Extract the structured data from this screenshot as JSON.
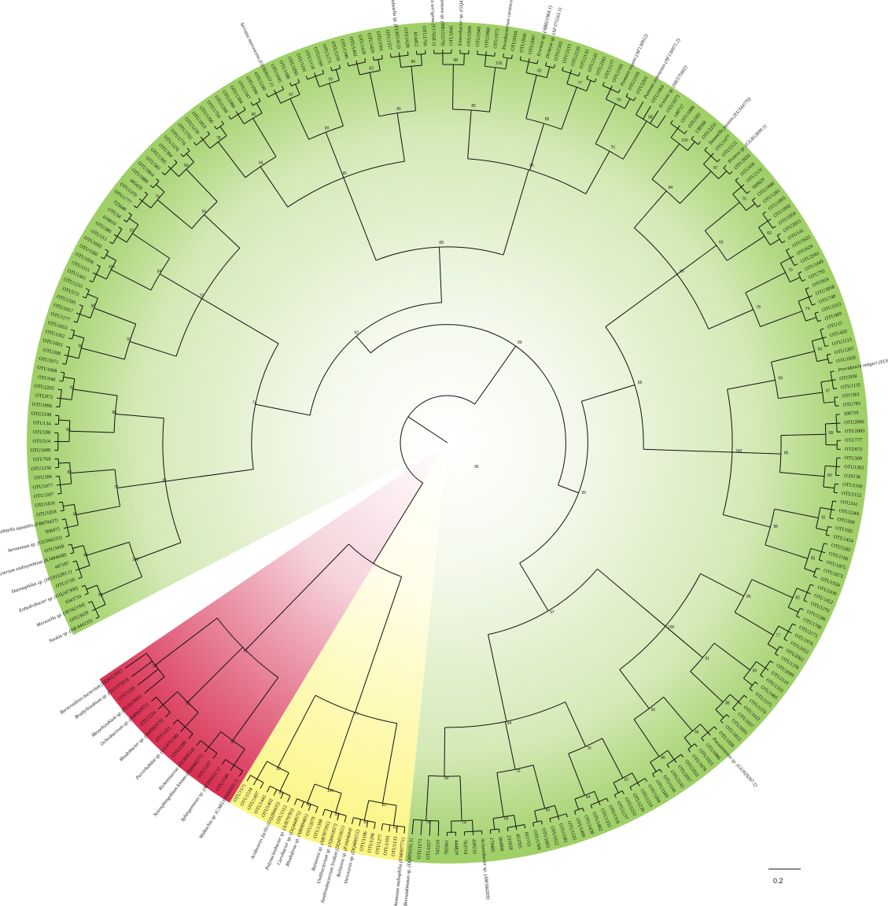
{
  "clades": {
    "green_color": "#8cc34f",
    "yellow_color": "#fbf57a",
    "red_color": "#d7264a"
  },
  "scale_bar": {
    "label": "0.2"
  },
  "root_bootstrap": "95",
  "inner_bootstraps": [
    "95",
    "98",
    "100",
    "85",
    "82",
    "77",
    "85",
    "93",
    "88",
    "91",
    "96",
    "88",
    "92",
    "100",
    "87",
    "84",
    "76",
    "60",
    "65",
    "70",
    "74",
    "78",
    "90",
    "94",
    "97",
    "99",
    "89",
    "83",
    "86",
    "81"
  ],
  "green_labels": [
    "Neokia sp. (NR 044135)",
    "OTU3620",
    "Moraxella sp. (AY162144)",
    "1043734",
    "Enhydrobacter sp. (GQ247300)",
    "OTU1739",
    "Haemophilus sp. (HG915281.1)",
    "447187",
    "Bacterium endosymbiont (KJ494648)",
    "OTU3458",
    "Aeromonas sp. (GU566333)",
    "908475",
    "Rahnella aquatilis (FR870437)",
    "OTU1858",
    "OTU1830",
    "OTU1207",
    "OTU1077",
    "OTU384",
    "OTU1236",
    "OTU768",
    "OTU1608",
    "OTU514",
    "OTU598",
    "OTU134",
    "OTU2198",
    "OTU1896",
    "OTU972",
    "OTU2205",
    "OTU940",
    "OTU1068",
    "OTU2071",
    "OTU208",
    "OTU1603",
    "OTU1162",
    "OTU1653",
    "OTU1177",
    "OTU1057",
    "OTU1595",
    "OTU572",
    "OTU1233",
    "OTU1441",
    "OTU1111",
    "OTU1836",
    "OTU1566",
    "OTU1602",
    "OTU153",
    "OTU380",
    "618010",
    "OTU34",
    "725648",
    "OTU1777",
    "OTU1370",
    "445420",
    "OTU1889",
    "OTU1864",
    "OTU583",
    "OTU1395",
    "OTU384",
    "OTU1376",
    "OTU1776",
    "OTU1702",
    "OTU1239",
    "OTU1853",
    "OTU1396",
    "OTU1759",
    "OTU1288",
    "OTU2080",
    "OTU1384",
    "OTU1347",
    "OTU1990",
    "OTU1240",
    "Serratia marcescens (GU826157.1)",
    "OTU1045",
    "OTU1188",
    "OTU1093",
    "OTU1101",
    "OTU1118",
    "OTU1160",
    "OTU1271",
    "OTU1310",
    "OTU1346",
    "OTU1402",
    "OTU1420",
    "OTU1429",
    "OTU1501",
    "OTU1557",
    "Klebsiella sp. (EU851413)",
    "OTU1628",
    "814452",
    "OTU1760",
    "Raoultella terrigena (Y17658.1)",
    "Pantoea sp. (NR153279)",
    "OTU1845",
    "Enterobacter sp. (GQ478258)",
    "OTU1909",
    "OTU1949",
    "OTU1960",
    "OTU1972",
    "Pectobacterium carotovorum (NR118528.1)",
    "OTU2034",
    "OTU2041",
    "OTU2067",
    "Erwinia sp. (AB021964.1)",
    "Dickeya sp. (AF373163.1)",
    "OTU2102",
    "OTU2115",
    "OTU2120",
    "OTU2133",
    "OTU2145",
    "OTU2161",
    "OTU2177",
    "OTU2181",
    "Pantoea vagans (AF130912)",
    "OTU2195",
    "OTU2201",
    "Pantoea cedenensis (AF130971.2)",
    "OTU1864",
    "Erwinia sp. (HE575602)",
    "OTU1073",
    "140717",
    "OTU1886",
    "OTU583",
    "138568",
    "OTU2251",
    "Tatumella ptyseos (EU344770)",
    "OTU1477",
    "OTU2121",
    "Proteus sp. (GU812899.1)",
    "OTU2024",
    "OTU418",
    "OTU2131",
    "560629",
    "OTU1846",
    "OTU1281",
    "OTU1893",
    "OTU1892",
    "OTU1956",
    "OTU2015",
    "OTU141",
    "OTU1622",
    "OTU624",
    "OTU2041",
    "OTU1449",
    "OTU792",
    "OTU924",
    "OTU1858",
    "OTU749",
    "OTU1553",
    "OTU469",
    "OTU15",
    "OTU420",
    "OTU2113",
    "OTU1267",
    "OTU1826",
    "Providencia rettgeri (EU660351.1)",
    "OTU930",
    "OTU1135",
    "OTU361",
    "OTU783",
    "300729",
    "OTU2082",
    "OTU2083",
    "OTU777",
    "OTU672",
    "OTU309",
    "OTU1302",
    "1129136",
    "OTU2166",
    "OTU2152",
    "OTU241",
    "OTU2344",
    "OTU506",
    "OTU585",
    "OTU1454",
    "OTU1282",
    "OTU1106",
    "OTU1875",
    "OTU1873",
    "OTU1924",
    "OTU2439",
    "OTU1452",
    "OTU1270",
    "OTU1596",
    "OTU1786",
    "OTU2173",
    "OTU1976",
    "OTU2052",
    "OTU2065",
    "OTU1376",
    "OTU2089",
    "OTU2116",
    "OTU1319",
    "OTU1495",
    "OTU1575",
    "OTU1579",
    "OTU1622",
    "OTU1657",
    "OTU1693",
    "OTU1813",
    "OTU1838",
    "Pseudomonas sp. (GU929287.1)",
    "OTU1886",
    "OTU1921",
    "OTU1979",
    "OTU2031",
    "OTU2057",
    "OTU2143",
    "OTU1141",
    "OTU1169",
    "OTU1204",
    "OTU1219",
    "OTU1239",
    "OTU1253",
    "OTU1277",
    "OTU1316",
    "OTU1355",
    "OTU1402",
    "OTU1438",
    "OTU1499",
    "OTU1535",
    "OTU1581",
    "OTU1612",
    "OTU1663",
    "OTU1709",
    "811715",
    "453705",
    "231828",
    "384868",
    "179405",
    "Acinetobacter sp. (AM184269)",
    "439233",
    "763719",
    "444829",
    "795961",
    "543218",
    "OTU1057",
    "OTU1173",
    "Brevundimonas sp. (DQ056191.1)"
  ],
  "yellow_labels": [
    "Stenotrophomonas maltophilia (FM997771)",
    "OTU1133",
    "OTU1391",
    "OTU1277",
    "OTU1296",
    "OTU1186",
    "Variovorax sp. (DQ480151)",
    "Ralstonia sp. (FJ444644)",
    "Janthinobacterium lividum (DQ451851)",
    "Undibacterium sp. (JQ041857)",
    "Ralstonia sp. (AB787391)",
    "OTU1398",
    "OTU2079",
    "Rhodoferax sp. (AB089481)",
    "Curvibacter sp. (DQ444971)",
    "Polynucleobacter sp. (AJ879783)",
    "OTU1512",
    "Acidovorax facilis (GQ284435)",
    "OTU1402",
    "OTU1443",
    "OTU1497",
    "OTU1534",
    "OTU1571"
  ],
  "red_labels": [
    "Wolbachia sp. (CAKU01000059.1)",
    "OTU1540",
    "Sphingomonas sp. (AF395032.1)",
    "OTU1287",
    "Novosphingobium lentum (AM040277)",
    "Rickettsiaceae (AY584554)",
    "OTU1389",
    "Parvirhabdus sp. (GU475138)",
    "OTU1411",
    "Rhodobacter sp. (AM902975)",
    "OTU1234",
    "Ochrobactrum sp. (AM902971)",
    "Mesorhizobium sp. (EU567061)",
    "OTU1256",
    "Bradyrhizobium sp. (GU137410)",
    "Bacteroidetes bacterium (DQ432391)"
  ]
}
